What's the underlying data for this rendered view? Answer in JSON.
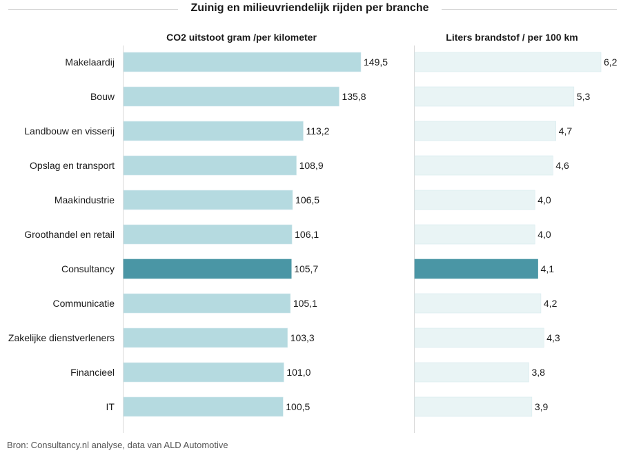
{
  "title": "Zuinig en milieuvriendelijk rijden per branche",
  "source": "Bron: Consultancy.nl analyse, data van ALD Automotive",
  "colors": {
    "co2_bar": "#b5dae0",
    "fuel_bar": "#e9f4f5",
    "highlight": "#4a96a5",
    "axis": "#d9d9d9"
  },
  "chart_data": [
    {
      "type": "bar",
      "orientation": "horizontal",
      "title": "CO2 uitstoot gram /per kilometer",
      "categories": [
        "Makelaardij",
        "Bouw",
        "Landbouw en visserij",
        "Opslag en transport",
        "Maakindustrie",
        "Groothandel en retail",
        "Consultancy",
        "Communicatie",
        "Zakelijke dienstverleners",
        "Financieel",
        "IT"
      ],
      "values": [
        149.5,
        135.8,
        113.2,
        108.9,
        106.5,
        106.1,
        105.7,
        105.1,
        103.3,
        101.0,
        100.5
      ],
      "value_labels": [
        "149,5",
        "135,8",
        "113,2",
        "108,9",
        "106,5",
        "106,1",
        "105,7",
        "105,1",
        "103,3",
        "101,0",
        "100,5"
      ],
      "highlight": "Consultancy",
      "xlim": [
        0,
        149.5
      ]
    },
    {
      "type": "bar",
      "orientation": "horizontal",
      "title": "Liters brandstof / per 100 km",
      "categories": [
        "Makelaardij",
        "Bouw",
        "Landbouw en visserij",
        "Opslag en transport",
        "Maakindustrie",
        "Groothandel en retail",
        "Consultancy",
        "Communicatie",
        "Zakelijke dienstverleners",
        "Financieel",
        "IT"
      ],
      "values": [
        6.2,
        5.3,
        4.7,
        4.6,
        4.0,
        4.0,
        4.1,
        4.2,
        4.3,
        3.8,
        3.9
      ],
      "value_labels": [
        "6,2",
        "5,3",
        "4,7",
        "4,6",
        "4,0",
        "4,0",
        "4,1",
        "4,2",
        "4,3",
        "3,8",
        "3,9"
      ],
      "highlight": "Consultancy",
      "xlim": [
        0,
        6.2
      ]
    }
  ]
}
